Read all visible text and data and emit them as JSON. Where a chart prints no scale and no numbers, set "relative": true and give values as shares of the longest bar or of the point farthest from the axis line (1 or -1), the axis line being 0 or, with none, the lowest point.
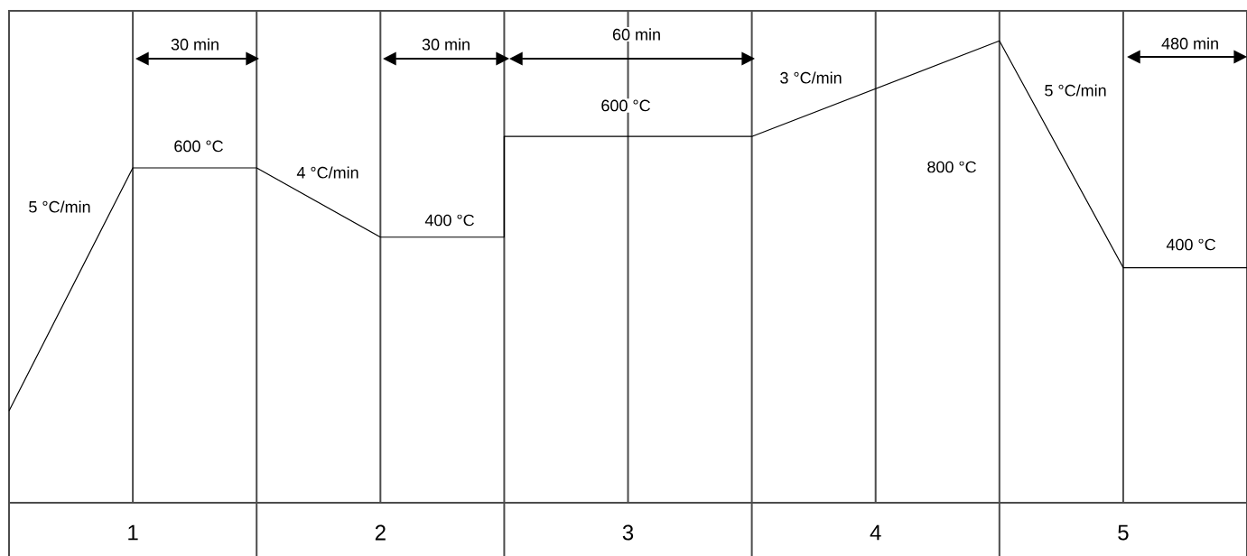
{
  "chart_data": {
    "type": "line",
    "relative": true,
    "color": "#000000",
    "x": [
      0,
      0.5,
      1,
      1.5,
      2,
      2,
      3,
      4,
      4.5,
      5
    ],
    "values": [
      0.199,
      0.725,
      0.725,
      0.575,
      0.575,
      0.793,
      0.793,
      1,
      0.509,
      0.509
    ],
    "xlim": [
      0,
      5
    ],
    "xticks": [
      {
        "value": 0,
        "label": null
      },
      {
        "value": 0.5,
        "label": "1"
      },
      {
        "value": 1,
        "label": null
      },
      {
        "value": 1.5,
        "label": "2"
      },
      {
        "value": 2,
        "label": null
      },
      {
        "value": 2.5,
        "label": "3"
      },
      {
        "value": 3,
        "label": null
      },
      {
        "value": 3.5,
        "label": "4"
      },
      {
        "value": 4,
        "label": null
      },
      {
        "value": 4.5,
        "label": "5"
      },
      {
        "value": 5,
        "label": null
      }
    ],
    "grid": "x",
    "annotations": [
      "5 °C/min",
      "600 °C",
      "4 °C/min",
      "400 °C",
      "600 °C",
      "3 °C/min",
      "800 °C",
      "5 °C/min",
      "400 °C",
      "30 min",
      "30 min",
      "60 min",
      "480 min"
    ]
  }
}
